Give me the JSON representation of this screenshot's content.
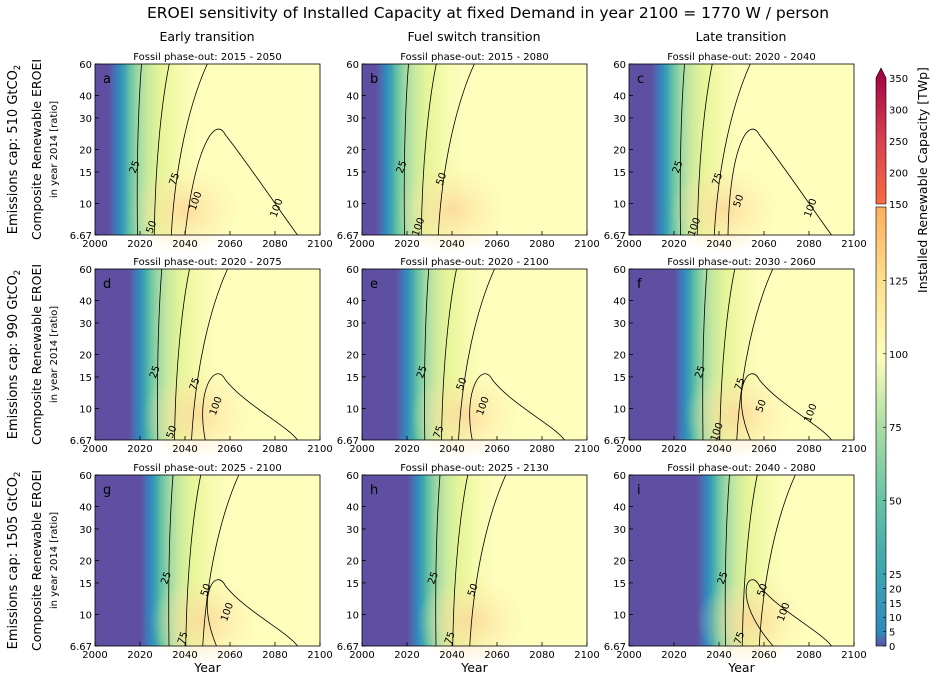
{
  "chart_data": {
    "type": "heatmap",
    "title": "EROEI sensitivity of Installed Capacity at fixed Demand in year 2100 = 1770 W / person",
    "columns": [
      "Early transition",
      "Fuel switch transition",
      "Late transition"
    ],
    "rows": [
      {
        "label": "Emissions cap: 510 GtCO",
        "label_sub": "2"
      },
      {
        "label": "Emissions cap: 990 GtCO",
        "label_sub": "2"
      },
      {
        "label": "Emissions cap: 1505 GtCO",
        "label_sub": "2"
      }
    ],
    "ylabel": "Composite Renewable EROEI",
    "ylabel_sub": "in year 2014 [ratio]",
    "xlabel": "Year",
    "x_ticks": [
      "2000",
      "2020",
      "2040",
      "2060",
      "2080",
      "2100"
    ],
    "xlim": [
      2000,
      2100
    ],
    "y_ticks": [
      "6.67",
      "10",
      "15",
      "20",
      "30",
      "40",
      "60"
    ],
    "ylim": [
      6.67,
      60
    ],
    "y_scale": "log",
    "panels": [
      {
        "letter": "a",
        "subtitle": "Fossil phase-out: 2015 - 2050",
        "onset": 2016,
        "labels": [
          "25",
          "75",
          "50",
          "100",
          "100"
        ]
      },
      {
        "letter": "b",
        "subtitle": "Fossil phase-out: 2015 - 2080",
        "onset": 2016,
        "labels": [
          "25",
          "50",
          "100"
        ]
      },
      {
        "letter": "c",
        "subtitle": "Fossil phase-out: 2020 - 2040",
        "onset": 2020,
        "labels": [
          "25",
          "75",
          "100",
          "50",
          "100"
        ]
      },
      {
        "letter": "d",
        "subtitle": "Fossil phase-out: 2020 - 2075",
        "onset": 2025,
        "labels": [
          "25",
          "75",
          "50",
          "100"
        ]
      },
      {
        "letter": "e",
        "subtitle": "Fossil phase-out: 2020 - 2100",
        "onset": 2025,
        "labels": [
          "25",
          "50",
          "75",
          "100"
        ]
      },
      {
        "letter": "f",
        "subtitle": "Fossil phase-out: 2030 - 2060",
        "onset": 2030,
        "labels": [
          "25",
          "75",
          "100",
          "50",
          "100"
        ]
      },
      {
        "letter": "g",
        "subtitle": "Fossil phase-out: 2025 - 2100",
        "onset": 2030,
        "labels": [
          "25",
          "50",
          "75",
          "100"
        ]
      },
      {
        "letter": "h",
        "subtitle": "Fossil phase-out: 2025 - 2130",
        "onset": 2030,
        "labels": [
          "25",
          "50",
          "75"
        ]
      },
      {
        "letter": "i",
        "subtitle": "Fossil phase-out: 2040 - 2080",
        "onset": 2040,
        "labels": [
          "25",
          "50",
          "75",
          "100"
        ]
      }
    ],
    "colorbar": {
      "label": "Installed Renewable Capacity [TWp]",
      "ticks_lower": [
        "0",
        "5",
        "10",
        "15",
        "20",
        "25",
        "50",
        "75",
        "100",
        "125",
        "150"
      ],
      "ticks_upper": [
        "150",
        "200",
        "250",
        "300",
        "350"
      ],
      "range_lower": [
        0,
        150
      ],
      "range_upper": [
        150,
        350
      ],
      "extend": "max"
    }
  }
}
